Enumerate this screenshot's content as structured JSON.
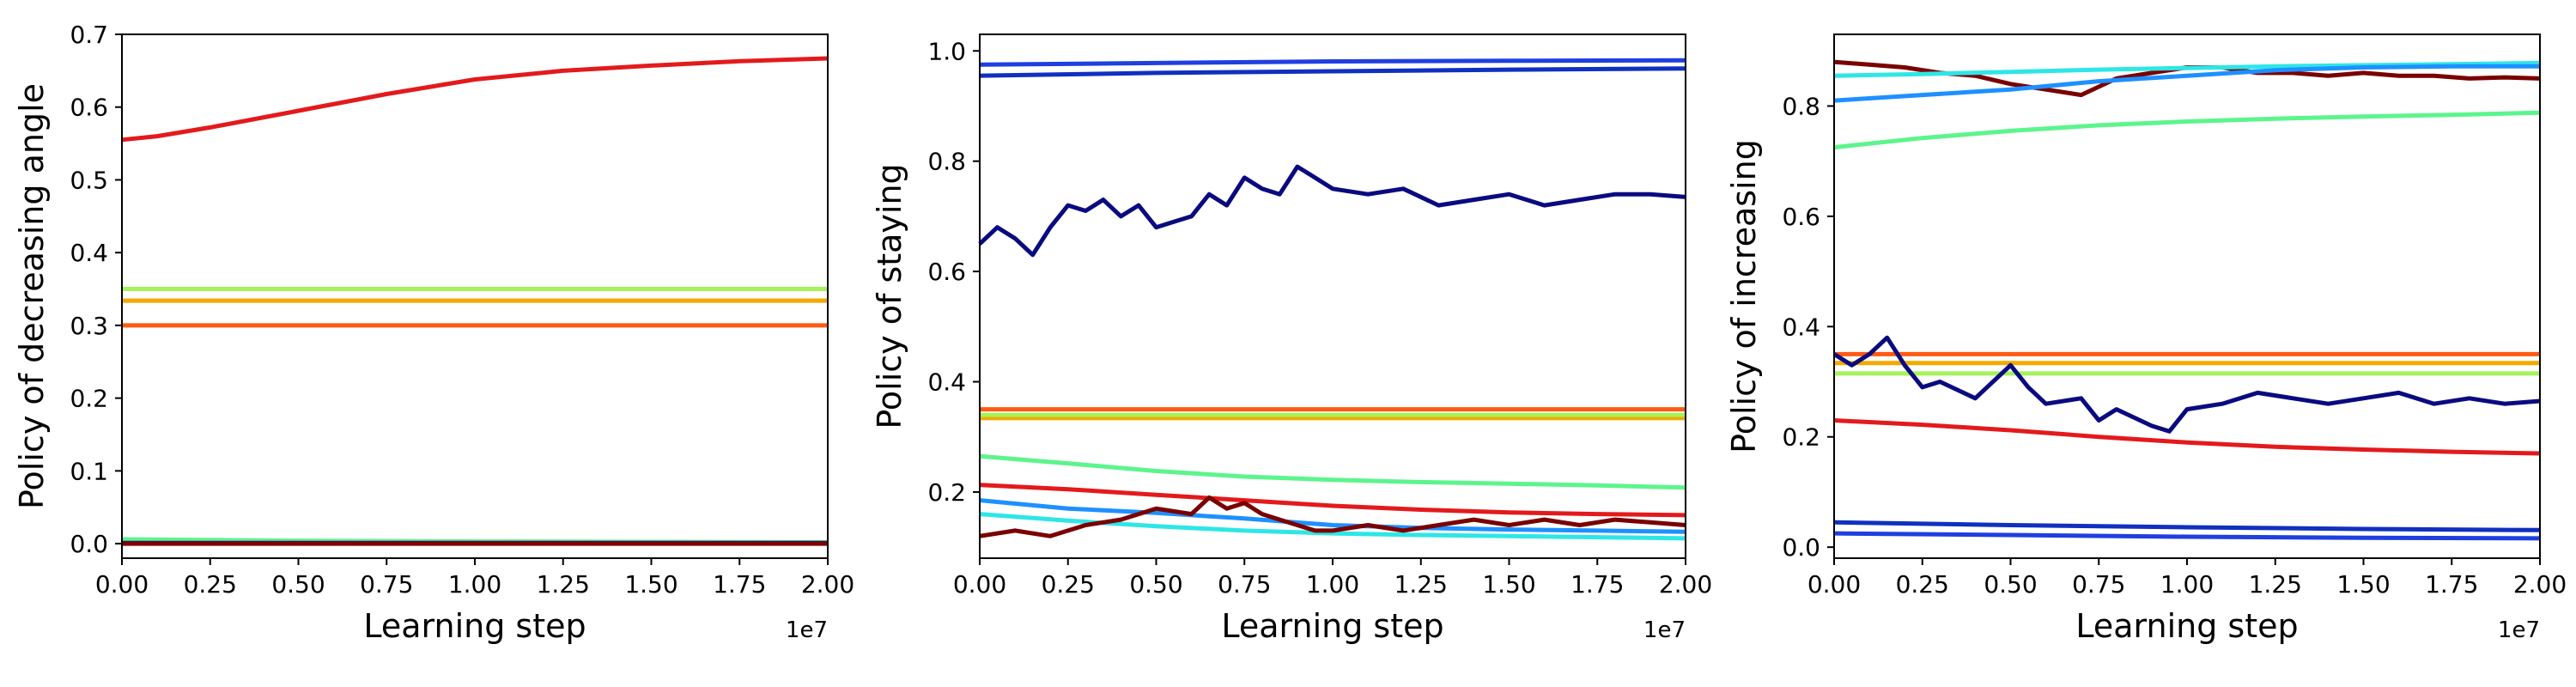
{
  "chart_data": [
    {
      "type": "line",
      "xlabel": "Learning step",
      "ylabel": "Policy of decreasing angle",
      "x_offset_label": "1e7",
      "xlim": [
        0,
        2.0
      ],
      "ylim": [
        -0.02,
        0.7
      ],
      "xticks": [
        "0.00",
        "0.25",
        "0.50",
        "0.75",
        "1.00",
        "1.25",
        "1.50",
        "1.75",
        "2.00"
      ],
      "yticks": [
        "0.0",
        "0.1",
        "0.2",
        "0.3",
        "0.4",
        "0.5",
        "0.6",
        "0.7"
      ],
      "grid": false,
      "series": [
        {
          "color": "#e31a1c",
          "x": [
            0,
            0.1,
            0.25,
            0.5,
            0.75,
            1.0,
            1.25,
            1.5,
            1.75,
            2.0
          ],
          "values": [
            0.555,
            0.56,
            0.572,
            0.595,
            0.618,
            0.638,
            0.65,
            0.657,
            0.663,
            0.667
          ]
        },
        {
          "color": "#a6f25a",
          "x": [
            0,
            2.0
          ],
          "values": [
            0.35,
            0.35
          ]
        },
        {
          "color": "#f2a900",
          "x": [
            0,
            2.0
          ],
          "values": [
            0.334,
            0.334
          ]
        },
        {
          "color": "#ff5a12",
          "x": [
            0,
            2.0
          ],
          "values": [
            0.3,
            0.3
          ]
        },
        {
          "color": "#5cf58c",
          "x": [
            0,
            0.5,
            1.0,
            2.0
          ],
          "values": [
            0.006,
            0.004,
            0.003,
            0.002
          ]
        },
        {
          "color": "#1a1a8c",
          "x": [
            0,
            2.0
          ],
          "values": [
            0.001,
            0.001
          ]
        },
        {
          "color": "#800000",
          "x": [
            0,
            2.0
          ],
          "values": [
            0.0,
            0.0
          ]
        }
      ]
    },
    {
      "type": "line",
      "xlabel": "Learning step",
      "ylabel": "Policy of staying",
      "x_offset_label": "1e7",
      "xlim": [
        0,
        2.0
      ],
      "ylim": [
        0.08,
        1.03
      ],
      "xticks": [
        "0.00",
        "0.25",
        "0.50",
        "0.75",
        "1.00",
        "1.25",
        "1.50",
        "1.75",
        "2.00"
      ],
      "yticks": [
        "0.2",
        "0.4",
        "0.6",
        "0.8",
        "1.0"
      ],
      "grid": false,
      "series": [
        {
          "color": "#1f3fe0",
          "x": [
            0,
            0.5,
            1.0,
            1.5,
            2.0
          ],
          "values": [
            0.975,
            0.978,
            0.981,
            0.982,
            0.983
          ]
        },
        {
          "color": "#1030c0",
          "x": [
            0,
            0.5,
            1.0,
            1.5,
            2.0
          ],
          "values": [
            0.955,
            0.96,
            0.963,
            0.966,
            0.968
          ]
        },
        {
          "color": "#0a0a80",
          "x": [
            0,
            0.05,
            0.1,
            0.15,
            0.2,
            0.25,
            0.3,
            0.35,
            0.4,
            0.45,
            0.5,
            0.55,
            0.6,
            0.65,
            0.7,
            0.75,
            0.8,
            0.85,
            0.9,
            0.95,
            1.0,
            1.1,
            1.2,
            1.3,
            1.4,
            1.5,
            1.6,
            1.7,
            1.8,
            1.9,
            2.0
          ],
          "values": [
            0.65,
            0.68,
            0.66,
            0.63,
            0.68,
            0.72,
            0.71,
            0.73,
            0.7,
            0.72,
            0.68,
            0.69,
            0.7,
            0.74,
            0.72,
            0.77,
            0.75,
            0.74,
            0.79,
            0.77,
            0.75,
            0.74,
            0.75,
            0.72,
            0.73,
            0.74,
            0.72,
            0.73,
            0.74,
            0.74,
            0.735
          ]
        },
        {
          "color": "#ff5a12",
          "x": [
            0,
            2.0
          ],
          "values": [
            0.35,
            0.35
          ]
        },
        {
          "color": "#f2a900",
          "x": [
            0,
            2.0
          ],
          "values": [
            0.334,
            0.334
          ]
        },
        {
          "color": "#a6f25a",
          "x": [
            0,
            2.0
          ],
          "values": [
            0.34,
            0.34
          ]
        },
        {
          "color": "#5cf58c",
          "x": [
            0,
            0.25,
            0.5,
            0.75,
            1.0,
            1.25,
            1.5,
            1.75,
            2.0
          ],
          "values": [
            0.265,
            0.252,
            0.238,
            0.228,
            0.222,
            0.218,
            0.215,
            0.212,
            0.208
          ]
        },
        {
          "color": "#e31a1c",
          "x": [
            0,
            0.25,
            0.5,
            0.75,
            1.0,
            1.25,
            1.5,
            1.75,
            2.0
          ],
          "values": [
            0.213,
            0.205,
            0.195,
            0.185,
            0.175,
            0.168,
            0.163,
            0.16,
            0.158
          ]
        },
        {
          "color": "#1e90ff",
          "x": [
            0,
            0.25,
            0.5,
            0.75,
            1.0,
            1.25,
            1.5,
            1.75,
            2.0
          ],
          "values": [
            0.185,
            0.17,
            0.162,
            0.152,
            0.14,
            0.135,
            0.132,
            0.13,
            0.128
          ]
        },
        {
          "color": "#2ee6e6",
          "x": [
            0,
            0.25,
            0.5,
            0.75,
            1.0,
            1.25,
            1.5,
            1.75,
            2.0
          ],
          "values": [
            0.16,
            0.148,
            0.138,
            0.13,
            0.125,
            0.122,
            0.12,
            0.118,
            0.116
          ]
        },
        {
          "color": "#7a0000",
          "x": [
            0,
            0.1,
            0.2,
            0.3,
            0.4,
            0.5,
            0.6,
            0.65,
            0.7,
            0.75,
            0.8,
            0.85,
            0.9,
            0.95,
            1.0,
            1.1,
            1.2,
            1.3,
            1.4,
            1.5,
            1.6,
            1.7,
            1.8,
            1.9,
            2.0
          ],
          "values": [
            0.12,
            0.13,
            0.12,
            0.14,
            0.15,
            0.17,
            0.16,
            0.19,
            0.17,
            0.18,
            0.16,
            0.15,
            0.14,
            0.13,
            0.13,
            0.14,
            0.13,
            0.14,
            0.15,
            0.14,
            0.15,
            0.14,
            0.15,
            0.145,
            0.14
          ]
        }
      ]
    },
    {
      "type": "line",
      "xlabel": "Learning step",
      "ylabel": "Policy of increasing",
      "x_offset_label": "1e7",
      "xlim": [
        0,
        2.0
      ],
      "ylim": [
        -0.02,
        0.93
      ],
      "xticks": [
        "0.00",
        "0.25",
        "0.50",
        "0.75",
        "1.00",
        "1.25",
        "1.50",
        "1.75",
        "2.00"
      ],
      "yticks": [
        "0.0",
        "0.2",
        "0.4",
        "0.6",
        "0.8"
      ],
      "grid": false,
      "series": [
        {
          "color": "#7a0000",
          "x": [
            0,
            0.1,
            0.2,
            0.3,
            0.4,
            0.5,
            0.6,
            0.7,
            0.8,
            0.9,
            1.0,
            1.1,
            1.2,
            1.3,
            1.4,
            1.5,
            1.6,
            1.7,
            1.8,
            1.9,
            2.0
          ],
          "values": [
            0.88,
            0.875,
            0.87,
            0.86,
            0.855,
            0.84,
            0.83,
            0.82,
            0.85,
            0.86,
            0.87,
            0.87,
            0.86,
            0.86,
            0.855,
            0.86,
            0.855,
            0.855,
            0.85,
            0.852,
            0.85
          ]
        },
        {
          "color": "#2ee6e6",
          "x": [
            0,
            0.25,
            0.5,
            0.75,
            1.0,
            1.25,
            1.5,
            1.75,
            2.0
          ],
          "values": [
            0.855,
            0.858,
            0.862,
            0.866,
            0.869,
            0.872,
            0.874,
            0.876,
            0.878
          ]
        },
        {
          "color": "#1e90ff",
          "x": [
            0,
            0.25,
            0.5,
            0.75,
            1.0,
            1.25,
            1.5,
            1.75,
            2.0
          ],
          "values": [
            0.81,
            0.82,
            0.83,
            0.845,
            0.855,
            0.865,
            0.87,
            0.872,
            0.872
          ]
        },
        {
          "color": "#5cf58c",
          "x": [
            0,
            0.25,
            0.5,
            0.75,
            1.0,
            1.25,
            1.5,
            1.75,
            2.0
          ],
          "values": [
            0.725,
            0.742,
            0.755,
            0.765,
            0.772,
            0.777,
            0.781,
            0.784,
            0.788
          ]
        },
        {
          "color": "#ff5a12",
          "x": [
            0,
            2.0
          ],
          "values": [
            0.35,
            0.35
          ]
        },
        {
          "color": "#f2a900",
          "x": [
            0,
            2.0
          ],
          "values": [
            0.334,
            0.334
          ]
        },
        {
          "color": "#a6f25a",
          "x": [
            0,
            2.0
          ],
          "values": [
            0.315,
            0.315
          ]
        },
        {
          "color": "#0a0a80",
          "x": [
            0,
            0.05,
            0.1,
            0.15,
            0.2,
            0.25,
            0.3,
            0.4,
            0.5,
            0.55,
            0.6,
            0.7,
            0.75,
            0.8,
            0.9,
            0.95,
            1.0,
            1.1,
            1.2,
            1.3,
            1.4,
            1.5,
            1.6,
            1.7,
            1.8,
            1.9,
            2.0
          ],
          "values": [
            0.35,
            0.33,
            0.35,
            0.38,
            0.33,
            0.29,
            0.3,
            0.27,
            0.33,
            0.29,
            0.26,
            0.27,
            0.23,
            0.25,
            0.22,
            0.21,
            0.25,
            0.26,
            0.28,
            0.27,
            0.26,
            0.27,
            0.28,
            0.26,
            0.27,
            0.26,
            0.265
          ]
        },
        {
          "color": "#e31a1c",
          "x": [
            0,
            0.25,
            0.5,
            0.75,
            1.0,
            1.25,
            1.5,
            1.75,
            2.0
          ],
          "values": [
            0.23,
            0.222,
            0.212,
            0.2,
            0.19,
            0.182,
            0.177,
            0.173,
            0.17
          ]
        },
        {
          "color": "#1030c0",
          "x": [
            0,
            0.5,
            1.0,
            1.5,
            2.0
          ],
          "values": [
            0.045,
            0.04,
            0.036,
            0.033,
            0.031
          ]
        },
        {
          "color": "#1f3fe0",
          "x": [
            0,
            0.5,
            1.0,
            1.5,
            2.0
          ],
          "values": [
            0.025,
            0.022,
            0.019,
            0.017,
            0.016
          ]
        }
      ]
    }
  ]
}
